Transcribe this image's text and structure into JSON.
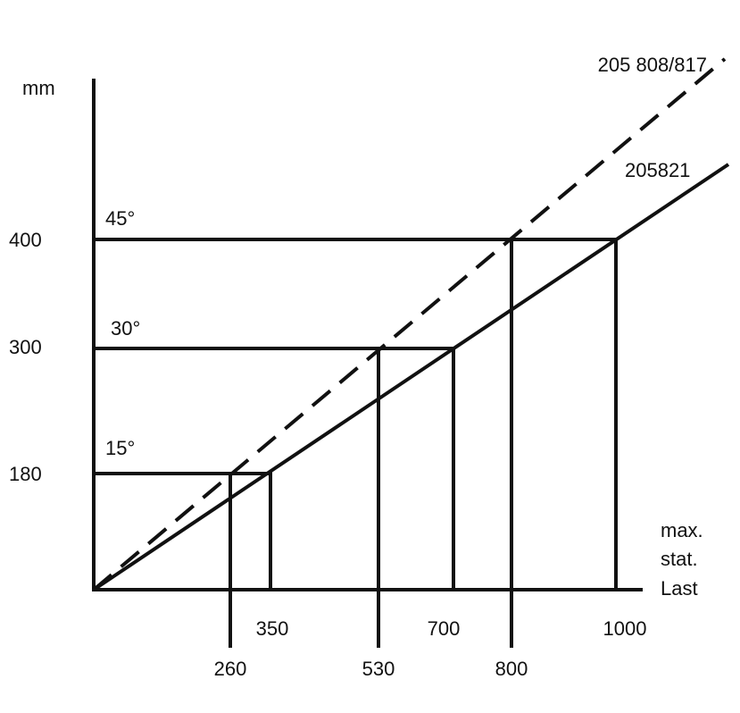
{
  "y_unit": "mm",
  "y_labels": [
    "400",
    "300",
    "180"
  ],
  "angles": [
    "45°",
    "30°",
    "15°"
  ],
  "x_labels_upper": [
    "350",
    "700",
    "1000"
  ],
  "x_labels_lower": [
    "260",
    "530",
    "800"
  ],
  "x_label": [
    "max.",
    "stat.",
    "Last"
  ],
  "lines": [
    "205 808/817",
    "205821"
  ]
}
